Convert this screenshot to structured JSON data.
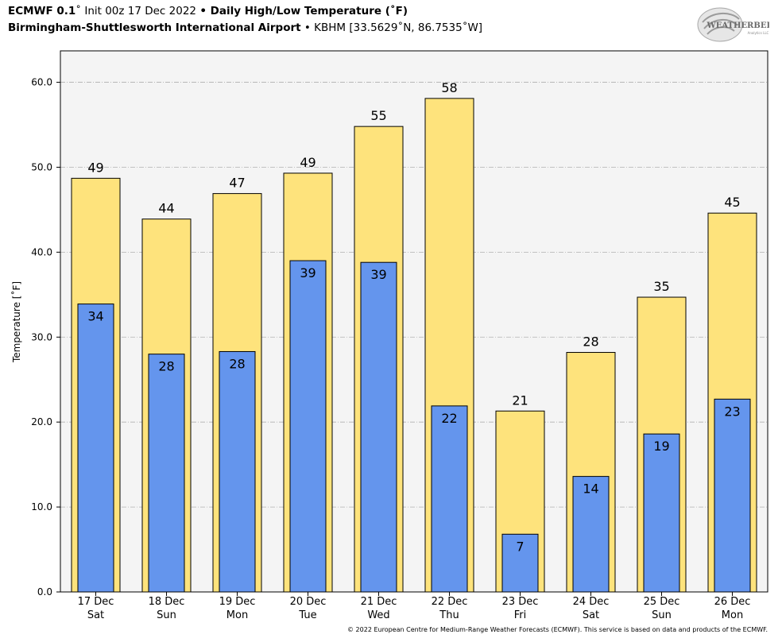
{
  "header": {
    "model": "ECMWF 0.1",
    "deg": "˚",
    "init": " Init 00z 17 Dec 2022 ",
    "sep1": "•",
    "title": " Daily High/Low Temperature (˚F)",
    "station": "Birmingham-Shuttlesworth International Airport",
    "sep2": " • ",
    "coords": "KBHM [33.5629˚N, 86.7535˚W]"
  },
  "logo": {
    "name": "weatherbell-logo",
    "text_main": "WEATHERBELL",
    "text_sub": "Analytics LLC"
  },
  "footer": "© 2022 European Centre for Medium-Range Weather Forecasts (ECMWF). This service is based on data and products of the ECMWF.",
  "colors": {
    "high": "#fee37c",
    "low": "#6495ed",
    "plot_bg": "#f4f4f4",
    "grid": "#b0b0b0"
  },
  "chart_data": {
    "type": "bar",
    "categories": [
      "17 Dec\nSat",
      "18 Dec\nSun",
      "19 Dec\nMon",
      "20 Dec\nTue",
      "21 Dec\nWed",
      "22 Dec\nThu",
      "23 Dec\nFri",
      "24 Dec\nSat",
      "25 Dec\nSun",
      "26 Dec\nMon"
    ],
    "category_dates": [
      "17 Dec",
      "18 Dec",
      "19 Dec",
      "20 Dec",
      "21 Dec",
      "22 Dec",
      "23 Dec",
      "24 Dec",
      "25 Dec",
      "26 Dec"
    ],
    "category_days": [
      "Sat",
      "Sun",
      "Mon",
      "Tue",
      "Wed",
      "Thu",
      "Fri",
      "Sat",
      "Sun",
      "Mon"
    ],
    "series": [
      {
        "name": "High",
        "values": [
          48.7,
          43.9,
          46.9,
          49.3,
          54.8,
          58.1,
          21.3,
          28.2,
          34.7,
          44.6
        ],
        "labels": [
          "49",
          "44",
          "47",
          "49",
          "55",
          "58",
          "21",
          "28",
          "35",
          "45"
        ]
      },
      {
        "name": "Low",
        "values": [
          33.9,
          28.0,
          28.3,
          39.0,
          38.8,
          21.9,
          6.8,
          13.6,
          18.6,
          22.7
        ],
        "labels": [
          "34",
          "28",
          "28",
          "39",
          "39",
          "22",
          "7",
          "14",
          "19",
          "23"
        ]
      }
    ],
    "ylabel": "Temperature [˚F]",
    "ylim": [
      0,
      63.7
    ],
    "yticks": [
      0,
      10,
      20,
      30,
      40,
      50,
      60
    ],
    "ytick_labels": [
      "0.0",
      "10.0",
      "20.0",
      "30.0",
      "40.0",
      "50.0",
      "60.0"
    ],
    "grid": true,
    "legend": "none"
  }
}
